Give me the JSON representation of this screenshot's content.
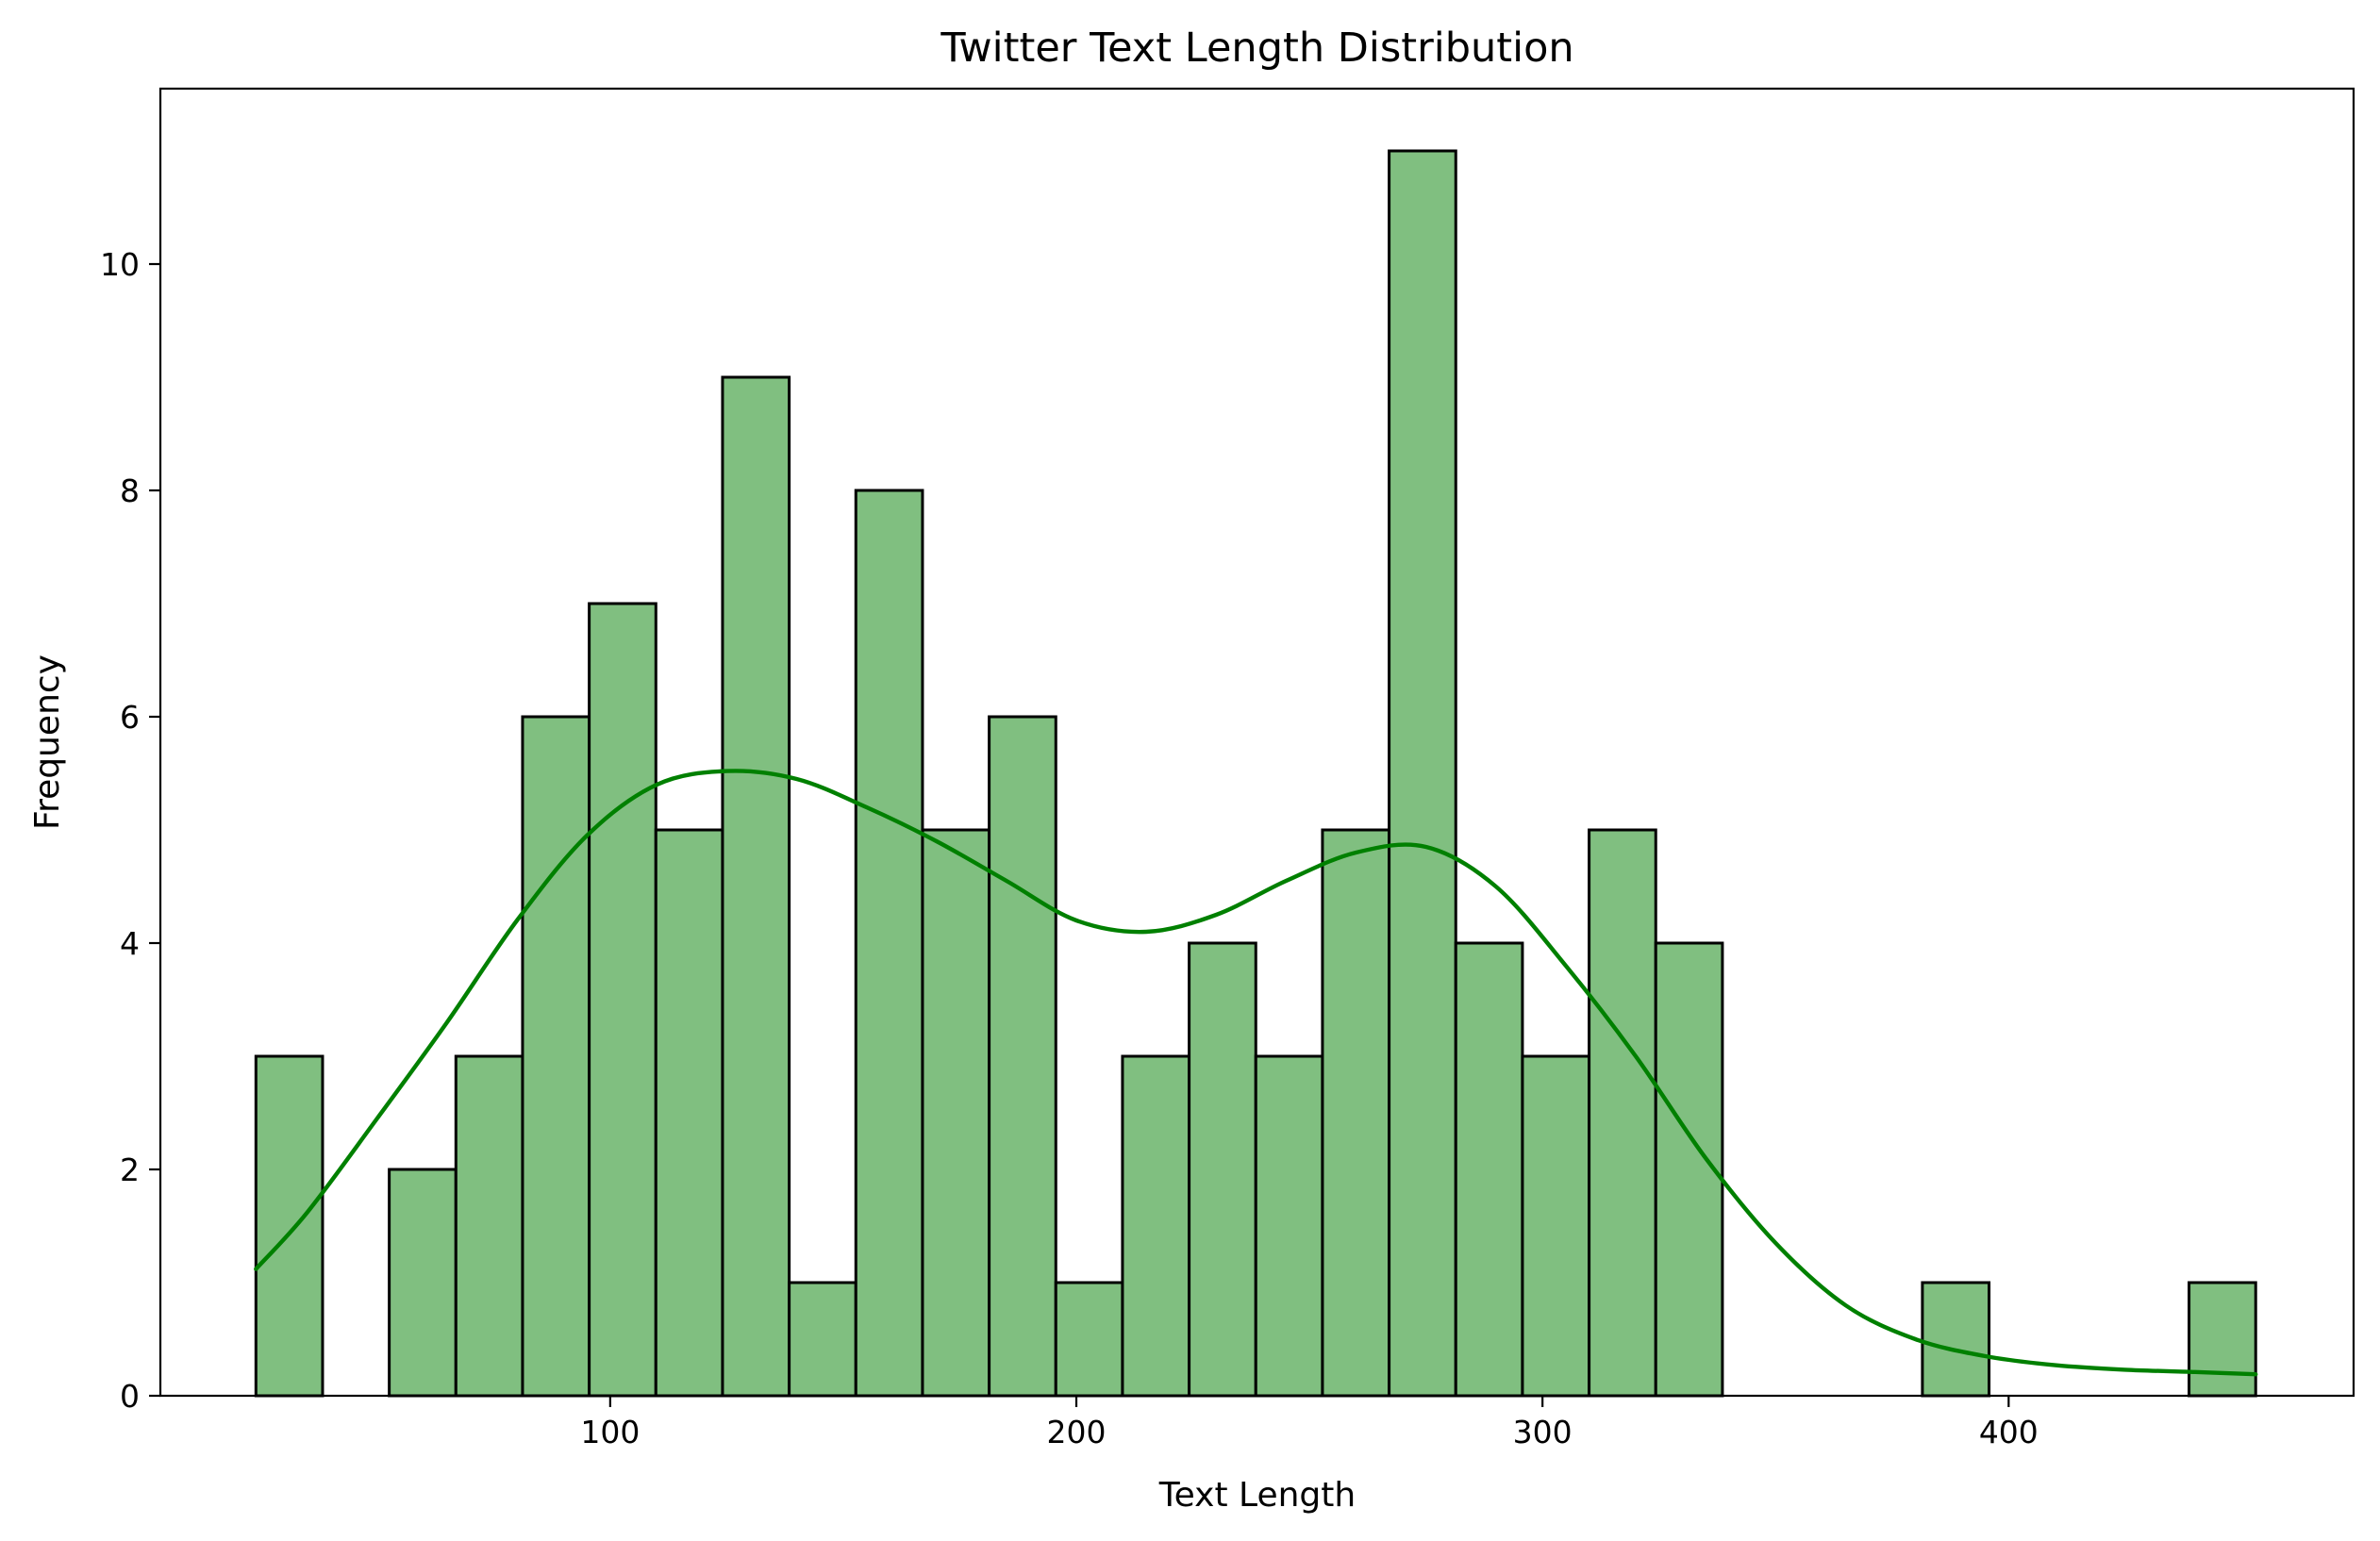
{
  "chart_data": {
    "type": "bar",
    "title": "Twitter Text Length Distribution",
    "xlabel": "Text Length",
    "ylabel": "Frequency",
    "xlim": [
      3.5,
      474
    ],
    "ylim": [
      0,
      11.55
    ],
    "xticks": [
      100,
      200,
      300,
      400
    ],
    "yticks": [
      0,
      2,
      4,
      6,
      8,
      10
    ],
    "bins": {
      "edges": [
        24.0,
        38.3,
        52.6,
        66.9,
        81.2,
        95.5,
        109.8,
        124.1,
        138.4,
        152.7,
        167.0,
        181.3,
        195.6,
        209.9,
        224.2,
        238.5,
        252.8,
        267.1,
        281.4,
        295.7,
        310.0,
        324.3,
        338.6,
        352.9,
        367.2,
        381.5,
        395.8,
        410.1,
        424.4,
        438.7,
        453.0
      ],
      "counts": [
        3,
        0,
        2,
        3,
        6,
        7,
        5,
        9,
        1,
        8,
        5,
        6,
        1,
        3,
        4,
        3,
        5,
        11,
        4,
        3,
        5,
        4,
        0,
        0,
        0,
        1,
        0,
        0,
        0,
        1
      ]
    },
    "kde": {
      "x": [
        24,
        35,
        50,
        65,
        80,
        95,
        110,
        125,
        140,
        155,
        170,
        185,
        200,
        215,
        230,
        245,
        260,
        275,
        290,
        305,
        320,
        335,
        350,
        365,
        380,
        395,
        410,
        425,
        440,
        453
      ],
      "y": [
        1.12,
        1.62,
        2.45,
        3.3,
        4.2,
        4.95,
        5.4,
        5.52,
        5.45,
        5.2,
        4.9,
        4.55,
        4.2,
        4.1,
        4.25,
        4.55,
        4.8,
        4.85,
        4.5,
        3.8,
        3.0,
        2.1,
        1.35,
        0.8,
        0.5,
        0.35,
        0.27,
        0.23,
        0.21,
        0.19
      ]
    },
    "colors": {
      "bar_fill": "#80bf80",
      "bar_edge": "#000000",
      "kde": "#008000"
    },
    "grid": false,
    "legend": "none"
  }
}
